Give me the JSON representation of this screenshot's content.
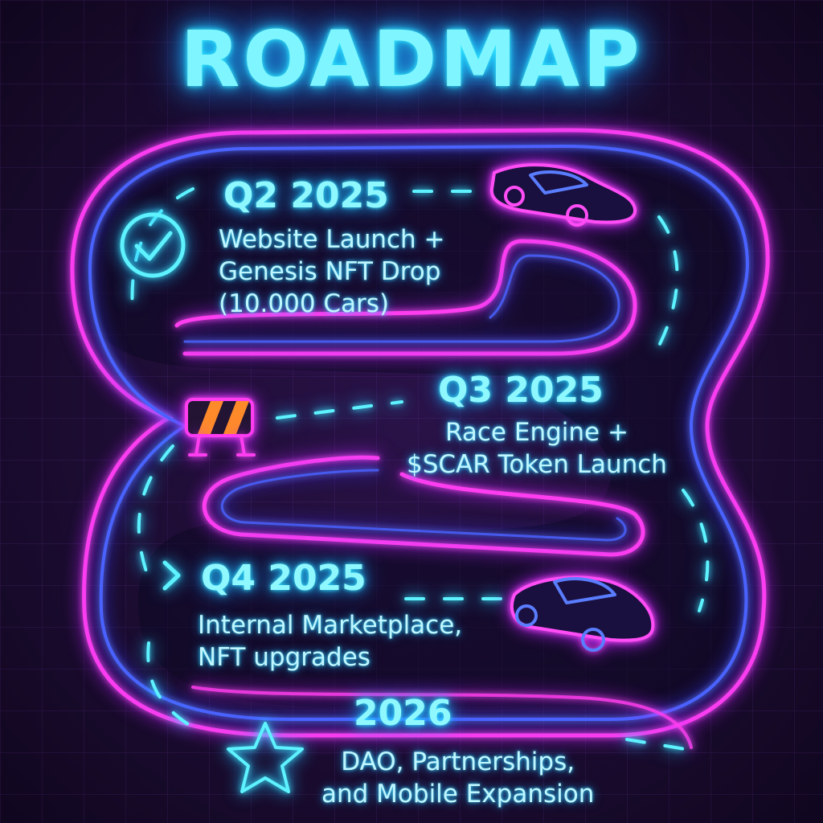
{
  "title": "ROADMAP",
  "colors": {
    "neon_cyan": "#4ef3ff",
    "neon_magenta": "#ff3df0",
    "neon_blue": "#4a62ff",
    "road_fill": "#0d0a22",
    "background": "#1a0b2e",
    "barrier_orange": "#ff8a2a"
  },
  "milestones": [
    {
      "period": "Q2 2025",
      "lines": [
        "Website Launch +",
        "Genesis NFT Drop",
        "(10.000 Cars)"
      ],
      "icon": "check-circle-icon"
    },
    {
      "period": "Q3 2025",
      "lines": [
        "Race Engine +",
        "$SCAR Token Launch"
      ],
      "icon": "road-barrier-icon"
    },
    {
      "period": "Q4 2025",
      "lines": [
        "Internal Marketplace,",
        "NFT upgrades"
      ],
      "icon": "chevron-right-icon"
    },
    {
      "period": "2026",
      "lines": [
        "DAO, Partnerships,",
        "and Mobile Expansion"
      ],
      "icon": "star-icon"
    }
  ],
  "decorations": [
    "sports-car-icon",
    "sports-car-icon"
  ]
}
